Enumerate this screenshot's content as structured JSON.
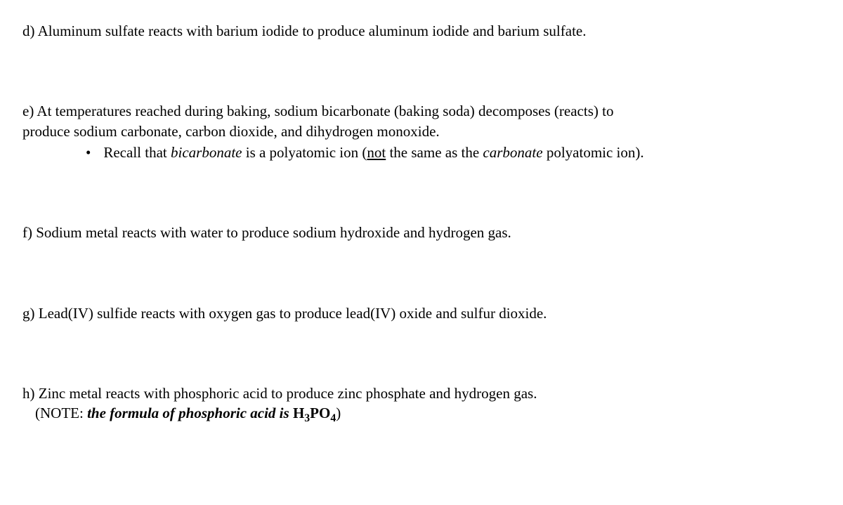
{
  "d": {
    "label": "d) ",
    "text": "Aluminum sulfate reacts with barium iodide to produce aluminum iodide and barium sulfate."
  },
  "e": {
    "label": "e) ",
    "line1a": "At temperatures reached during baking, sodium bicarbonate (baking soda) decomposes (reacts) to",
    "line2a": "produce sodium carbonate, carbon dioxide, and dihydrogen monoxide.",
    "bullet_pre": "Recall that ",
    "bullet_em1": "bicarbonate",
    "bullet_mid1": " is a polyatomic ion (",
    "bullet_not": "not",
    "bullet_mid2": " the same as the ",
    "bullet_em2": "carbonate",
    "bullet_post": " polyatomic ion)."
  },
  "f": {
    "label": "f) ",
    "text": "Sodium metal reacts with water to produce sodium hydroxide and hydrogen gas."
  },
  "g": {
    "label": "g)  ",
    "text": "Lead(IV) sulfide reacts with oxygen gas to produce lead(IV) oxide and sulfur dioxide."
  },
  "h": {
    "label": "h) ",
    "text": "Zinc metal reacts with phosphoric acid to produce zinc phosphate and hydrogen gas.",
    "note_pre": "(NOTE: ",
    "note_em": "the formula of phosphoric acid is",
    "note_formula_pre": " H",
    "note_formula_sub1": "3",
    "note_formula_mid": "PO",
    "note_formula_sub2": "4",
    "note_post": ")"
  }
}
